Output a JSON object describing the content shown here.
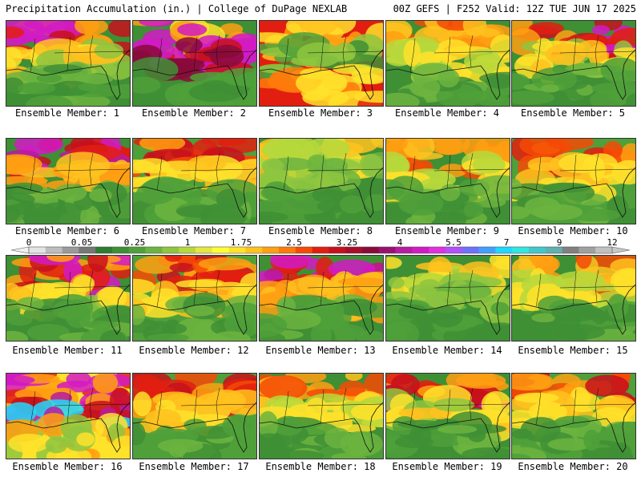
{
  "header": {
    "left": "Precipitation Accumulation (in.) | College of DuPage NEXLAB",
    "right": "00Z GEFS | F252 Valid: 12Z TUE JUN 17 2025"
  },
  "members": [
    {
      "label": "Ensemble Member: 1",
      "scheme": "hot_north"
    },
    {
      "label": "Ensemble Member: 2",
      "scheme": "hot_band"
    },
    {
      "label": "Ensemble Member: 3",
      "scheme": "mid_band"
    },
    {
      "label": "Ensemble Member: 4",
      "scheme": "warm"
    },
    {
      "label": "Ensemble Member: 5",
      "scheme": "hot_north"
    },
    {
      "label": "Ensemble Member: 6",
      "scheme": "purple_west"
    },
    {
      "label": "Ensemble Member: 7",
      "scheme": "warm_red"
    },
    {
      "label": "Ensemble Member: 8",
      "scheme": "dry"
    },
    {
      "label": "Ensemble Member: 9",
      "scheme": "warm"
    },
    {
      "label": "Ensemble Member: 10",
      "scheme": "warm_red"
    },
    {
      "label": "Ensemble Member: 11",
      "scheme": "hot_north"
    },
    {
      "label": "Ensemble Member: 12",
      "scheme": "warm_red"
    },
    {
      "label": "Ensemble Member: 13",
      "scheme": "purple_west"
    },
    {
      "label": "Ensemble Member: 14",
      "scheme": "dry"
    },
    {
      "label": "Ensemble Member: 15",
      "scheme": "warm"
    },
    {
      "label": "Ensemble Member: 16",
      "scheme": "hot_center"
    },
    {
      "label": "Ensemble Member: 17",
      "scheme": "warm_red"
    },
    {
      "label": "Ensemble Member: 18",
      "scheme": "warm"
    },
    {
      "label": "Ensemble Member: 19",
      "scheme": "hot_north"
    },
    {
      "label": "Ensemble Member: 20",
      "scheme": "warm_red"
    }
  ],
  "colorbar": {
    "ticks": [
      "0",
      "0.05",
      "0.25",
      "1",
      "1.75",
      "2.5",
      "3.25",
      "4",
      "5.5",
      "7",
      "9",
      "12"
    ],
    "colors": [
      "#e4e4e4",
      "#bdbdbd",
      "#9a9a9a",
      "#777777",
      "#2f7b2f",
      "#3f8f35",
      "#4fa03a",
      "#6cb43f",
      "#8ec640",
      "#b6d83c",
      "#e6e640",
      "#ffff33",
      "#ffe22a",
      "#ffc21e",
      "#ff9f12",
      "#ff7a0a",
      "#f54a06",
      "#e21e10",
      "#c8101c",
      "#a80c2a",
      "#8a0a3a",
      "#9a1070",
      "#b81aa0",
      "#d21ac6",
      "#e030e0",
      "#b050ff",
      "#7070ff",
      "#40a0ff",
      "#20d8ff",
      "#30e8e0",
      "#40c8c8",
      "#60b0b0",
      "#808080",
      "#a0a0a0",
      "#c0c0c0"
    ]
  }
}
